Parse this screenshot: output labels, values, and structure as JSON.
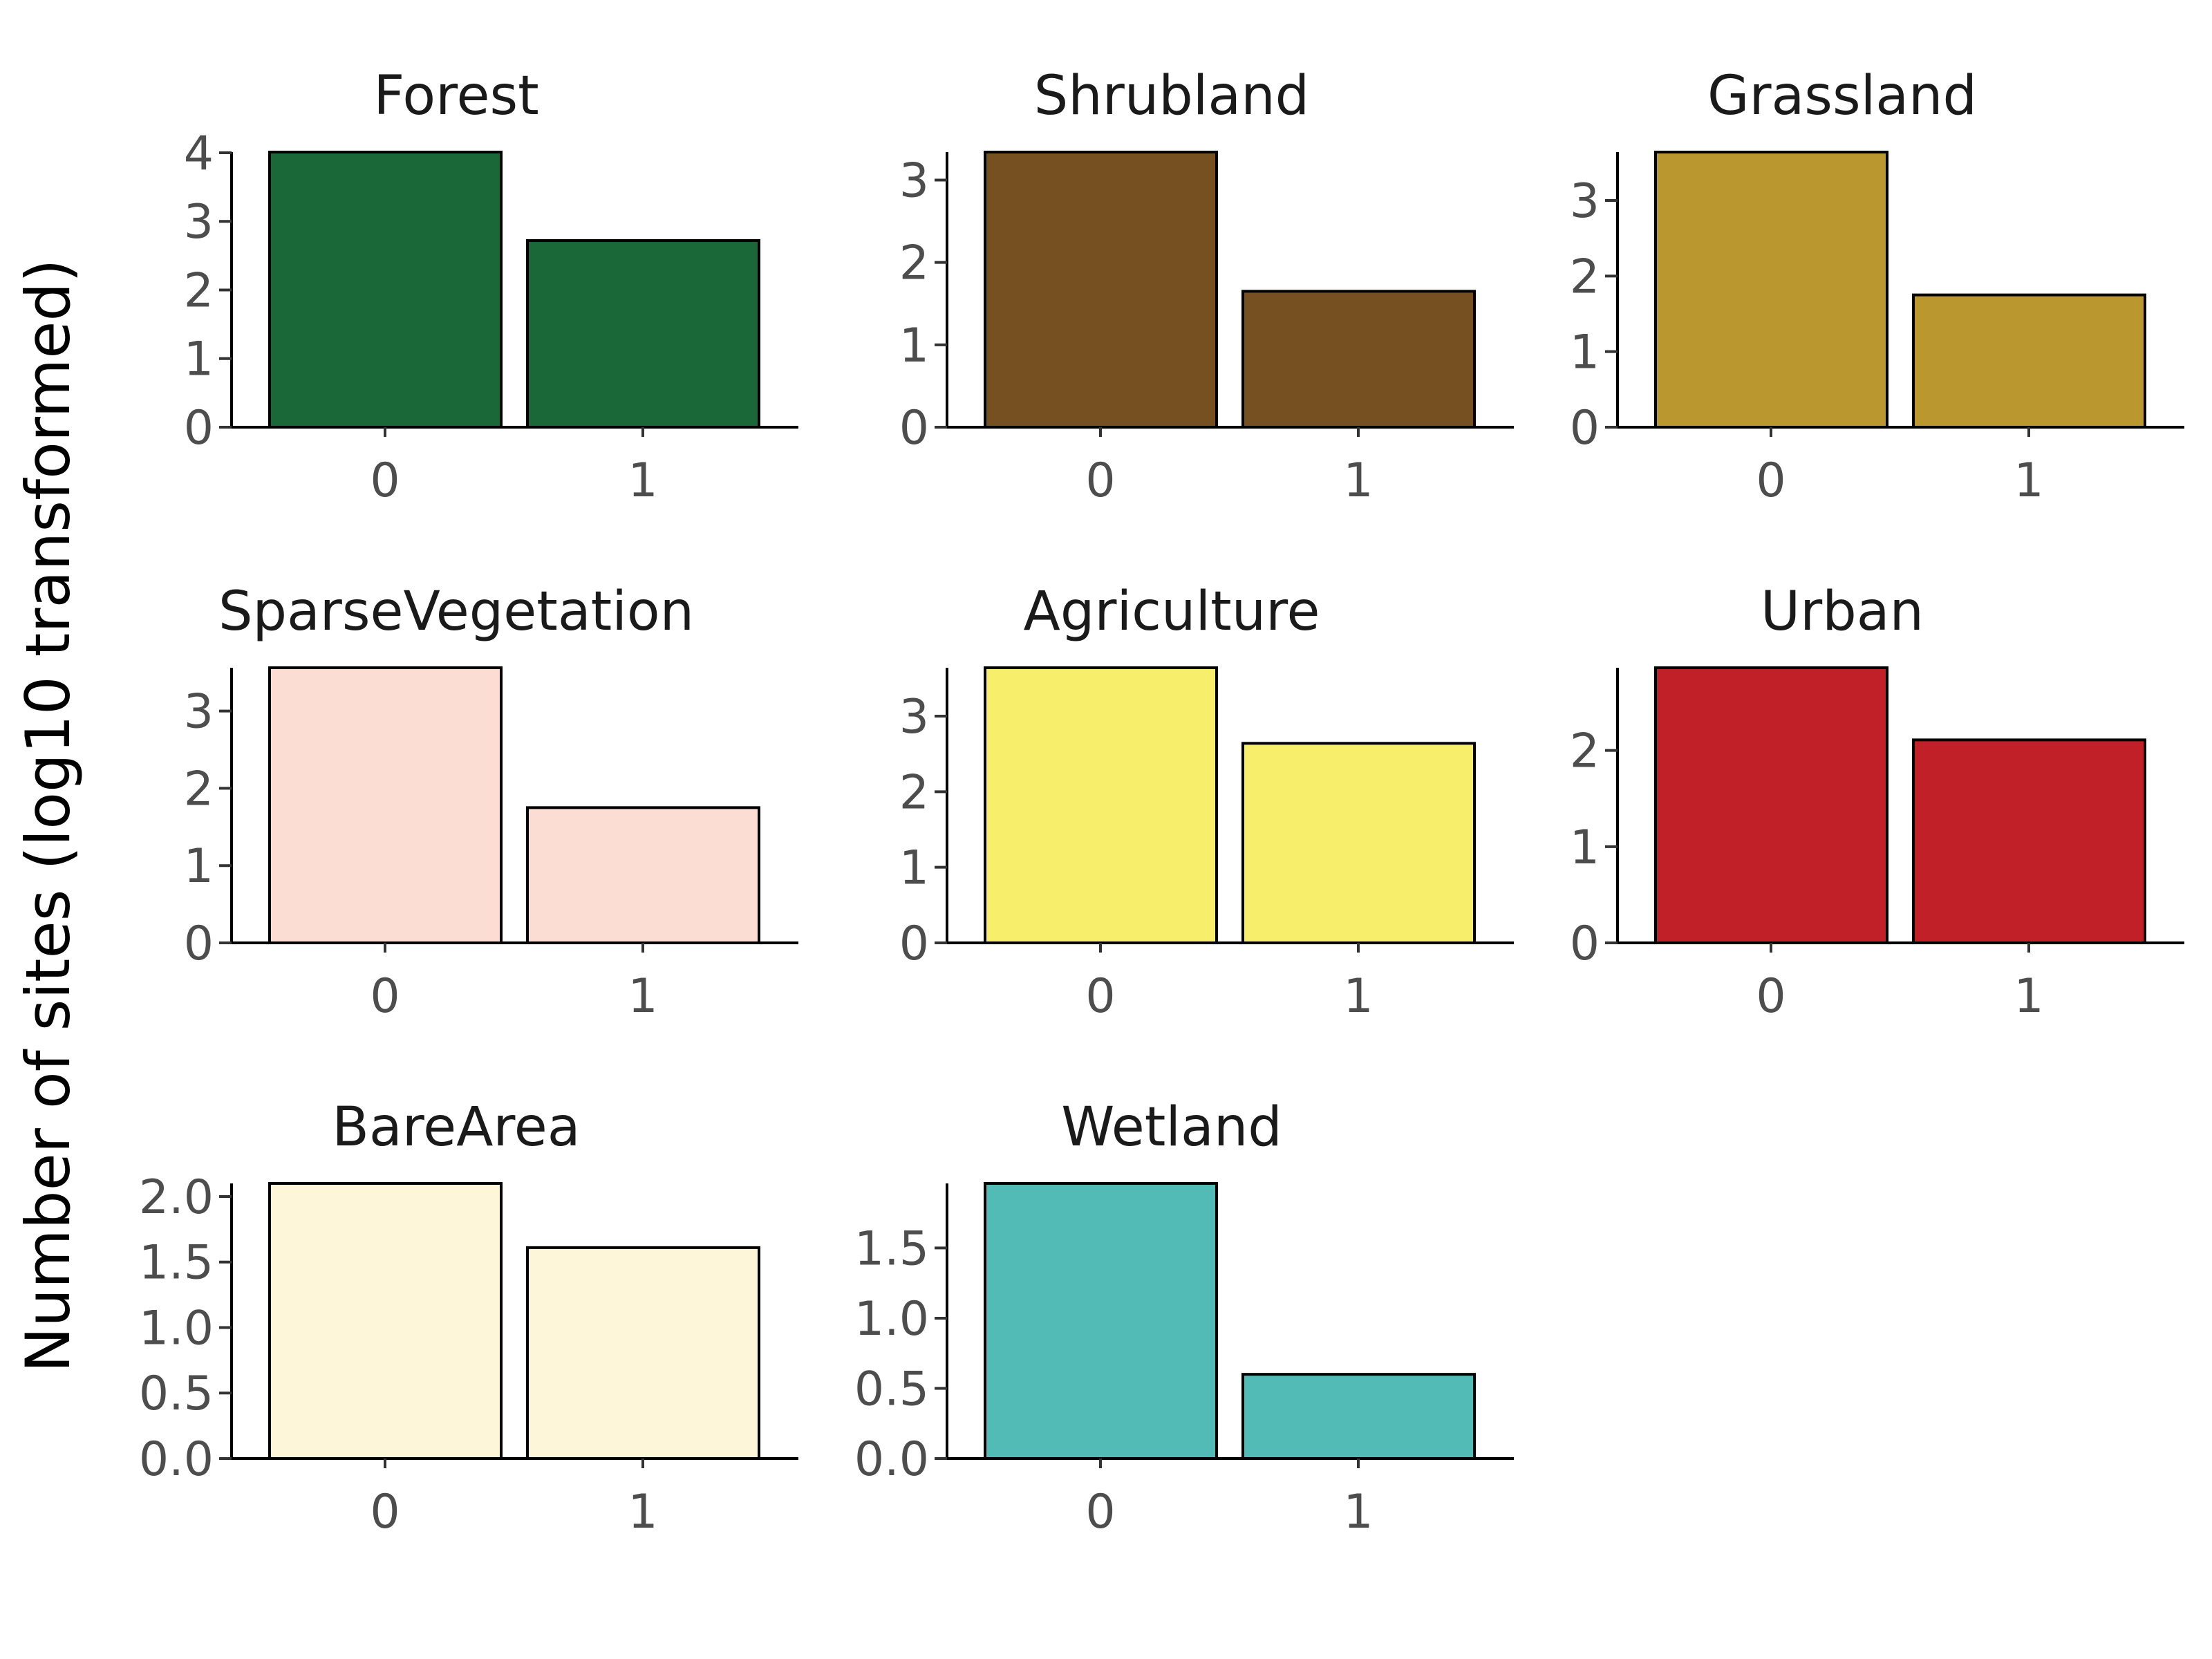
{
  "chart_data": {
    "type": "bar",
    "ylabel": "Number of sites (log10 transformed)",
    "categories": [
      "0",
      "1"
    ],
    "panels": [
      {
        "title": "Forest",
        "color": "#1a6837",
        "values": [
          4.01,
          2.72
        ],
        "ylim": [
          0,
          4.01
        ],
        "yticks": [
          0,
          1,
          2,
          3,
          4
        ],
        "ytick_labels": [
          "0",
          "1",
          "2",
          "3",
          "4"
        ]
      },
      {
        "title": "Shrubland",
        "color": "#775022",
        "values": [
          3.34,
          1.65
        ],
        "ylim": [
          0,
          3.34
        ],
        "yticks": [
          0,
          1,
          2,
          3
        ],
        "ytick_labels": [
          "0",
          "1",
          "2",
          "3"
        ]
      },
      {
        "title": "Grassland",
        "color": "#bb9730",
        "values": [
          3.64,
          1.75
        ],
        "ylim": [
          0,
          3.64
        ],
        "yticks": [
          0,
          1,
          2,
          3
        ],
        "ytick_labels": [
          "0",
          "1",
          "2",
          "3"
        ]
      },
      {
        "title": "SparseVegetation",
        "color": "#fcddd3",
        "values": [
          3.56,
          1.75
        ],
        "ylim": [
          0,
          3.56
        ],
        "yticks": [
          0,
          1,
          2,
          3
        ],
        "ytick_labels": [
          "0",
          "1",
          "2",
          "3"
        ]
      },
      {
        "title": "Agriculture",
        "color": "#f7ef6b",
        "values": [
          3.64,
          2.64
        ],
        "ylim": [
          0,
          3.64
        ],
        "yticks": [
          0,
          1,
          2,
          3
        ],
        "ytick_labels": [
          "0",
          "1",
          "2",
          "3"
        ]
      },
      {
        "title": "Urban",
        "color": "#c22028",
        "values": [
          2.86,
          2.11
        ],
        "ylim": [
          0,
          2.86
        ],
        "yticks": [
          0,
          1,
          2
        ],
        "ytick_labels": [
          "0",
          "1",
          "2"
        ]
      },
      {
        "title": "BareArea",
        "color": "#fef6d9",
        "values": [
          2.1,
          1.61
        ],
        "ylim": [
          0,
          2.1
        ],
        "yticks": [
          0,
          0.5,
          1,
          1.5,
          2
        ],
        "ytick_labels": [
          "0.0",
          "0.5",
          "1.0",
          "1.5",
          "2.0"
        ]
      },
      {
        "title": "Wetland",
        "color": "#52bbb6",
        "values": [
          1.96,
          0.6
        ],
        "ylim": [
          0,
          1.96
        ],
        "yticks": [
          0,
          0.5,
          1,
          1.5
        ],
        "ytick_labels": [
          "0.0",
          "0.5",
          "1.0",
          "1.5"
        ]
      }
    ]
  }
}
